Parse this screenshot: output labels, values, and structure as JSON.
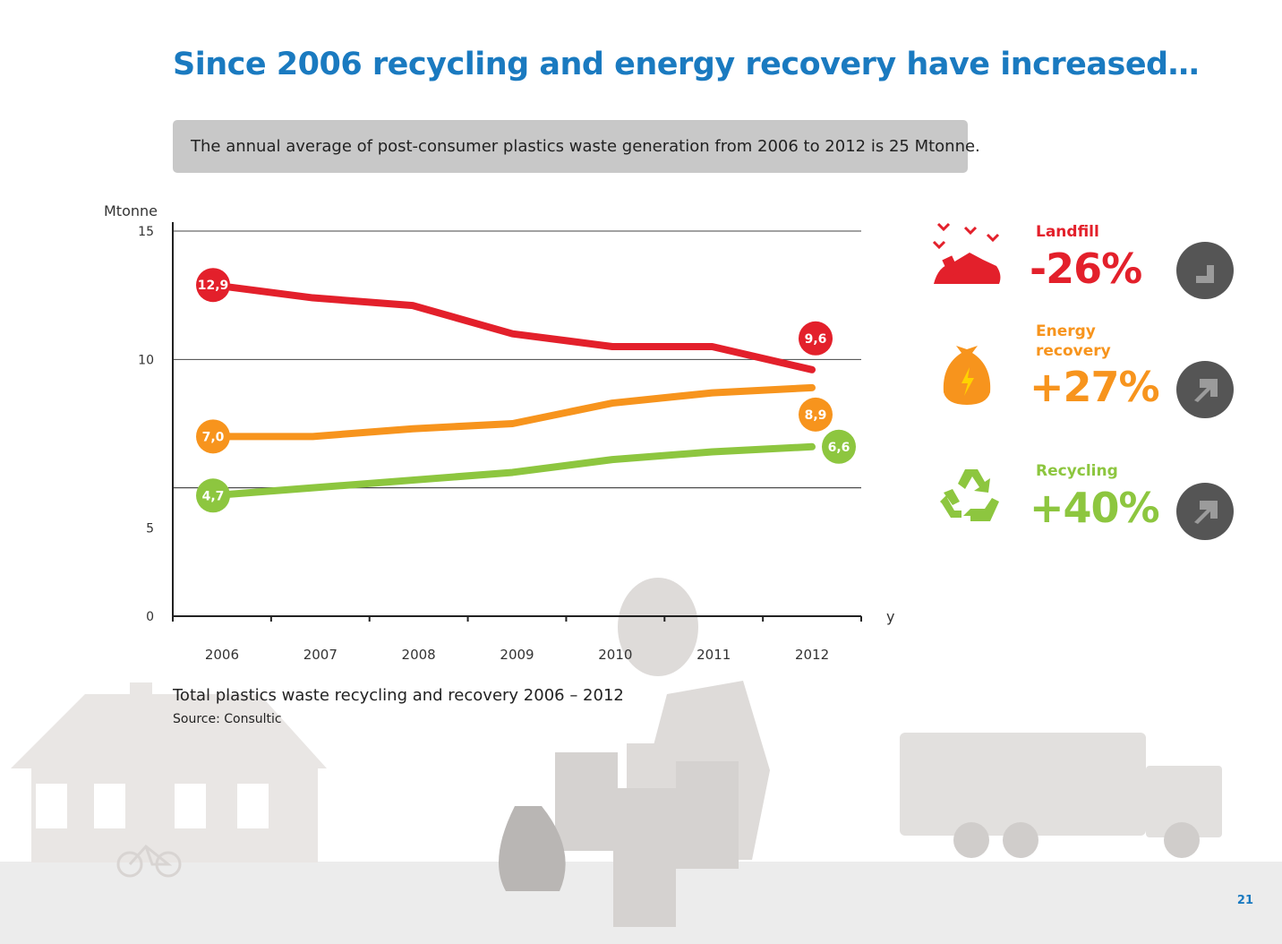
{
  "page": {
    "title": "Since 2006 recycling and energy recovery have increased…",
    "info_box": "The annual average of post-consumer plastics waste generation from 2006 to 2012 is 25 Mtonne.",
    "caption": "Total plastics waste recycling and recovery 2006 – 2012",
    "source": "Source: Consultic",
    "page_number": "21"
  },
  "chart_data": {
    "type": "line",
    "ylabel": "Mtonne",
    "xlabel": "year",
    "ylim": [
      0,
      15
    ],
    "yticks": [
      0,
      5,
      10,
      15
    ],
    "ytick_labels": [
      "0",
      "5",
      "10",
      "15"
    ],
    "categories": [
      "2006",
      "2007",
      "2008",
      "2009",
      "2010",
      "2011",
      "2012"
    ],
    "grid": true,
    "series": [
      {
        "key": "landfill",
        "color": "#e3202b",
        "values": [
          12.9,
          12.4,
          12.1,
          11.0,
          10.5,
          10.5,
          9.6
        ],
        "start_label": "12,9",
        "end_label": "9,6"
      },
      {
        "key": "energy",
        "color": "#f7941d",
        "values": [
          7.0,
          7.0,
          7.3,
          7.5,
          8.3,
          8.7,
          8.9
        ],
        "start_label": "7,0",
        "end_label": "8,9"
      },
      {
        "key": "recycling",
        "color": "#8dc63f",
        "values": [
          4.7,
          5.0,
          5.3,
          5.6,
          6.1,
          6.4,
          6.6
        ],
        "start_label": "4,7",
        "end_label": "6,6"
      }
    ]
  },
  "stats": [
    {
      "key": "landfill",
      "label_lines": [
        "Landfill"
      ],
      "value": "-26%",
      "color": "#e3202b",
      "arrow": "down-right",
      "icon": "landfill-icon"
    },
    {
      "key": "energy",
      "label_lines": [
        "Energy",
        "recovery"
      ],
      "value": "+27%",
      "color": "#f7941d",
      "arrow": "up-right",
      "icon": "energy-bag-icon"
    },
    {
      "key": "recycling",
      "label_lines": [
        "Recycling"
      ],
      "value": "+40%",
      "color": "#8dc63f",
      "arrow": "up-right",
      "icon": "recycling-icon"
    }
  ]
}
